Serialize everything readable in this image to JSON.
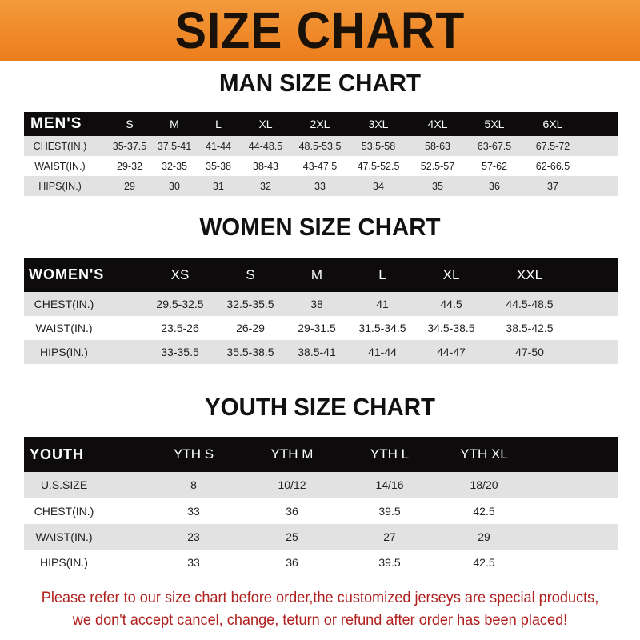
{
  "banner": {
    "title": "SIZE CHART",
    "color": "#ee8525"
  },
  "men": {
    "title": "MAN SIZE CHART",
    "headers": [
      "MEN'S",
      "S",
      "M",
      "L",
      "XL",
      "2XL",
      "3XL",
      "4XL",
      "5XL",
      "6XL"
    ],
    "rows": [
      [
        "CHEST(IN.)",
        "35-37.5",
        "37.5-41",
        "41-44",
        "44-48.5",
        "48.5-53.5",
        "53.5-58",
        "58-63",
        "63-67.5",
        "67.5-72"
      ],
      [
        "WAIST(IN.)",
        "29-32",
        "32-35",
        "35-38",
        "38-43",
        "43-47.5",
        "47.5-52.5",
        "52.5-57",
        "57-62",
        "62-66.5"
      ],
      [
        "HIPS(IN.)",
        "29",
        "30",
        "31",
        "32",
        "33",
        "34",
        "35",
        "36",
        "37"
      ]
    ]
  },
  "women": {
    "title": "WOMEN SIZE CHART",
    "headers": [
      "WOMEN'S",
      "XS",
      "S",
      "M",
      "L",
      "XL",
      "XXL"
    ],
    "rows": [
      [
        "CHEST(IN.)",
        "29.5-32.5",
        "32.5-35.5",
        "38",
        "41",
        "44.5",
        "44.5-48.5"
      ],
      [
        "WAIST(IN.)",
        "23.5-26",
        "26-29",
        "29-31.5",
        "31.5-34.5",
        "34.5-38.5",
        "38.5-42.5"
      ],
      [
        "HIPS(IN.)",
        "33-35.5",
        "35.5-38.5",
        "38.5-41",
        "41-44",
        "44-47",
        "47-50"
      ]
    ]
  },
  "youth": {
    "title": "YOUTH SIZE CHART",
    "headers": [
      "YOUTH",
      "YTH S",
      "YTH M",
      "YTH L",
      "YTH XL"
    ],
    "rows": [
      [
        "U.S.SIZE",
        "8",
        "10/12",
        "14/16",
        "18/20"
      ],
      [
        "CHEST(IN.)",
        "33",
        "36",
        "39.5",
        "42.5"
      ],
      [
        "WAIST(IN.)",
        "23",
        "25",
        "27",
        "29"
      ],
      [
        "HIPS(IN.)",
        "33",
        "36",
        "39.5",
        "42.5"
      ]
    ]
  },
  "notice": {
    "line1": "Please refer to our size chart before order,the customized jerseys are special products,",
    "line2": "we don't accept cancel, change, teturn or refund after order has been placed!",
    "color": "#b0201e"
  }
}
